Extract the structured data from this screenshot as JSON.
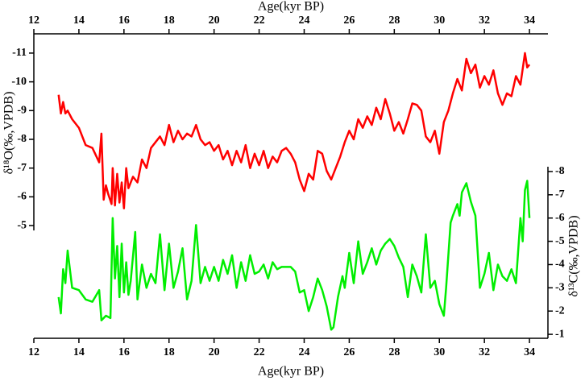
{
  "chart_data": {
    "type": "line",
    "xlabel": "Age(kyr BP)",
    "ylabel": "δ¹⁸O(‰,VPDB)",
    "y2label": "δ¹³C(‰,VPDB)",
    "xlim": [
      12,
      34.82
    ],
    "xticks": [
      12,
      14,
      16,
      18,
      20,
      22,
      24,
      26,
      28,
      30,
      32,
      34
    ],
    "ylim": [
      -1.08,
      -11.67
    ],
    "yticks": [
      -11,
      -10,
      -9,
      -8,
      -7,
      -6,
      -5
    ],
    "y2lim": [
      -0.83,
      -13.92
    ],
    "y2ticks": [
      -8,
      -7,
      -6,
      -5,
      -4,
      -3,
      -2,
      -1
    ],
    "series": [
      {
        "color": "#ff0000",
        "x": [
          13.1,
          13.2,
          13.3,
          13.4,
          13.5,
          13.7,
          14.0,
          14.3,
          14.6,
          14.9,
          15.0,
          15.1,
          15.2,
          15.3,
          15.45,
          15.5,
          15.6,
          15.7,
          15.8,
          15.9,
          16.0,
          16.1,
          16.2,
          16.4,
          16.6,
          16.8,
          17.0,
          17.2,
          17.4,
          17.6,
          17.8,
          18.0,
          18.2,
          18.4,
          18.6,
          18.8,
          19.0,
          19.2,
          19.4,
          19.6,
          19.8,
          20.0,
          20.2,
          20.4,
          20.6,
          20.8,
          21.0,
          21.2,
          21.4,
          21.6,
          21.8,
          22.0,
          22.2,
          22.4,
          22.6,
          22.8,
          23.0,
          23.2,
          23.4,
          23.6,
          23.8,
          24.0,
          24.2,
          24.4,
          24.6,
          24.8,
          25.0,
          25.2,
          25.4,
          25.6,
          25.8,
          26.0,
          26.2,
          26.4,
          26.6,
          26.8,
          27.0,
          27.2,
          27.4,
          27.6,
          27.8,
          28.0,
          28.2,
          28.4,
          28.6,
          28.8,
          29.0,
          29.2,
          29.4,
          29.6,
          29.8,
          30.0,
          30.2,
          30.4,
          30.6,
          30.8,
          31.0,
          31.2,
          31.4,
          31.6,
          31.8,
          32.0,
          32.2,
          32.4,
          32.6,
          32.8,
          33.0,
          33.2,
          33.4,
          33.6,
          33.8,
          33.9,
          34.0
        ],
        "values": [
          -9.55,
          -8.9,
          -9.3,
          -8.9,
          -9.0,
          -8.7,
          -8.4,
          -7.8,
          -7.7,
          -7.2,
          -8.2,
          -5.9,
          -6.4,
          -6.1,
          -5.75,
          -7.0,
          -5.7,
          -6.8,
          -5.8,
          -6.5,
          -5.6,
          -7.0,
          -6.3,
          -6.7,
          -6.5,
          -7.3,
          -7.0,
          -7.7,
          -7.9,
          -8.1,
          -7.8,
          -8.5,
          -7.9,
          -8.3,
          -8.0,
          -8.2,
          -8.1,
          -8.5,
          -8.0,
          -7.8,
          -7.9,
          -7.6,
          -7.8,
          -7.3,
          -7.6,
          -7.1,
          -7.6,
          -7.2,
          -7.8,
          -7.0,
          -7.5,
          -7.1,
          -7.6,
          -7.0,
          -7.4,
          -7.2,
          -7.6,
          -7.7,
          -7.5,
          -7.2,
          -6.6,
          -6.2,
          -6.8,
          -6.6,
          -7.6,
          -7.5,
          -6.9,
          -6.6,
          -7.0,
          -7.4,
          -7.9,
          -8.3,
          -8.0,
          -8.7,
          -8.4,
          -8.8,
          -8.5,
          -9.1,
          -8.7,
          -9.4,
          -8.9,
          -8.3,
          -8.6,
          -8.2,
          -8.7,
          -9.25,
          -9.2,
          -9.0,
          -8.1,
          -7.9,
          -8.3,
          -7.5,
          -8.6,
          -9.0,
          -9.6,
          -10.1,
          -9.7,
          -10.8,
          -10.3,
          -10.6,
          -9.8,
          -10.2,
          -9.9,
          -10.4,
          -9.6,
          -9.2,
          -9.6,
          -9.5,
          -10.2,
          -9.9,
          -11.0,
          -10.5,
          -10.6
        ]
      },
      {
        "color": "#00ee00",
        "axis": "y2",
        "x": [
          13.1,
          13.2,
          13.3,
          13.4,
          13.5,
          13.7,
          14.0,
          14.3,
          14.6,
          14.9,
          15.0,
          15.2,
          15.4,
          15.5,
          15.6,
          15.7,
          15.8,
          15.9,
          16.0,
          16.1,
          16.2,
          16.3,
          16.5,
          16.6,
          16.8,
          17.0,
          17.2,
          17.4,
          17.6,
          17.8,
          18.0,
          18.2,
          18.4,
          18.6,
          18.8,
          19.0,
          19.2,
          19.4,
          19.6,
          19.8,
          20.0,
          20.2,
          20.4,
          20.6,
          20.8,
          21.0,
          21.2,
          21.4,
          21.6,
          21.8,
          22.0,
          22.2,
          22.4,
          22.6,
          22.8,
          23.0,
          23.4,
          23.6,
          23.8,
          24.0,
          24.2,
          24.4,
          24.6,
          24.8,
          25.0,
          25.2,
          25.3,
          25.5,
          25.7,
          25.8,
          26.0,
          26.2,
          26.4,
          26.6,
          26.8,
          27.0,
          27.2,
          27.4,
          27.6,
          27.8,
          28.0,
          28.2,
          28.4,
          28.6,
          28.8,
          29.0,
          29.2,
          29.4,
          29.6,
          29.8,
          30.0,
          30.2,
          30.3,
          30.5,
          30.6,
          30.8,
          30.9,
          31.0,
          31.2,
          31.4,
          31.6,
          31.8,
          32.0,
          32.2,
          32.4,
          32.6,
          32.8,
          33.0,
          33.2,
          33.4,
          33.6,
          33.7,
          33.8,
          33.9,
          34.0
        ],
        "values": [
          -2.6,
          -1.9,
          -3.8,
          -3.2,
          -4.6,
          -3.0,
          -2.9,
          -2.5,
          -2.4,
          -2.9,
          -1.6,
          -1.8,
          -1.7,
          -6.0,
          -3.4,
          -4.8,
          -2.6,
          -4.9,
          -2.8,
          -4.1,
          -2.7,
          -3.3,
          -5.4,
          -2.5,
          -4.0,
          -3.0,
          -3.6,
          -3.2,
          -5.3,
          -2.9,
          -4.9,
          -3.0,
          -3.7,
          -4.7,
          -2.5,
          -3.3,
          -5.7,
          -3.2,
          -3.9,
          -3.3,
          -3.9,
          -3.3,
          -4.2,
          -3.6,
          -4.4,
          -3.0,
          -4.1,
          -3.3,
          -4.4,
          -3.6,
          -3.7,
          -4.0,
          -3.4,
          -4.1,
          -3.8,
          -3.9,
          -3.9,
          -3.7,
          -2.8,
          -2.9,
          -2.0,
          -2.6,
          -3.4,
          -2.9,
          -2.2,
          -1.2,
          -1.3,
          -2.6,
          -3.5,
          -3.0,
          -4.5,
          -3.2,
          -5.0,
          -3.6,
          -4.1,
          -4.7,
          -4.0,
          -4.6,
          -4.9,
          -5.1,
          -4.8,
          -4.3,
          -3.9,
          -2.6,
          -4.0,
          -3.5,
          -2.8,
          -5.3,
          -3.0,
          -3.3,
          -2.3,
          -1.8,
          -3.0,
          -5.8,
          -6.1,
          -6.6,
          -6.1,
          -7.1,
          -7.5,
          -6.7,
          -6.1,
          -3.0,
          -3.6,
          -4.5,
          -2.9,
          -4.0,
          -3.5,
          -3.3,
          -3.8,
          -3.2,
          -6.0,
          -5.0,
          -7.2,
          -7.6,
          -6.0
        ]
      }
    ]
  }
}
